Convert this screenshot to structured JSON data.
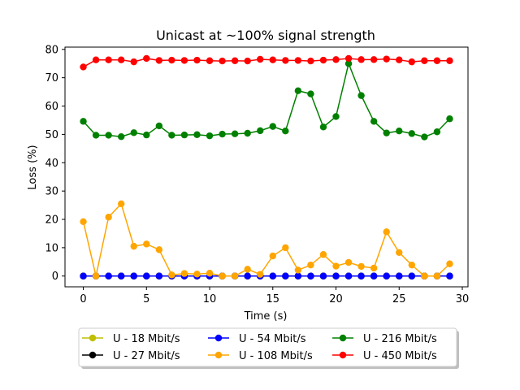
{
  "chart_data": {
    "type": "line",
    "title": "Unicast  at ~100% signal strength",
    "xlabel": "Time (s)",
    "ylabel": "Loss (%)",
    "xlim": [
      -1.45,
      30.45
    ],
    "ylim": [
      -3.8,
      80.8
    ],
    "xticks": [
      0,
      5,
      10,
      15,
      20,
      25,
      30
    ],
    "yticks": [
      0,
      10,
      20,
      30,
      40,
      50,
      60,
      70,
      80
    ],
    "grid": false,
    "legend_position": "bottom-center, below plot, 3 columns",
    "x": [
      0,
      1,
      2,
      3,
      4,
      5,
      6,
      7,
      8,
      9,
      10,
      11,
      12,
      13,
      14,
      15,
      16,
      17,
      18,
      19,
      20,
      21,
      22,
      23,
      24,
      25,
      26,
      27,
      28,
      29
    ],
    "series": [
      {
        "name": "U - 18 Mbit/s",
        "color": "#bfbf00",
        "values": [
          0,
          0,
          0,
          0,
          0,
          0,
          0,
          0,
          0,
          0,
          0,
          0,
          0,
          0,
          0,
          0,
          0,
          0,
          0,
          0,
          0,
          0,
          0,
          0,
          0,
          0,
          0,
          0,
          0,
          0
        ]
      },
      {
        "name": "U - 27 Mbit/s",
        "color": "#000000",
        "values": [
          0,
          0,
          0,
          0,
          0,
          0,
          0,
          0,
          0,
          0,
          0,
          0,
          0,
          0,
          0,
          0,
          0,
          0,
          0,
          0,
          0,
          0,
          0,
          0,
          0,
          0,
          0,
          0,
          0,
          0
        ]
      },
      {
        "name": "U - 54 Mbit/s",
        "color": "#0000ff",
        "values": [
          0,
          0,
          0,
          0,
          0,
          0,
          0,
          0,
          0,
          0,
          0,
          0,
          0,
          0,
          0,
          0,
          0,
          0,
          0,
          0,
          0,
          0,
          0,
          0,
          0,
          0,
          0,
          0,
          0,
          0
        ]
      },
      {
        "name": "U - 108 Mbit/s",
        "color": "#ffa500",
        "values": [
          19.2,
          0,
          20.8,
          25.5,
          10.5,
          11.3,
          9.3,
          0.4,
          0.9,
          0.7,
          1.0,
          0,
          0,
          2.4,
          0.6,
          7.1,
          10.0,
          2.1,
          3.9,
          7.6,
          3.5,
          4.8,
          3.4,
          2.8,
          15.6,
          8.3,
          3.9,
          0,
          0,
          4.3
        ]
      },
      {
        "name": "U - 216 Mbit/s",
        "color": "#008000",
        "values": [
          54.6,
          49.7,
          49.7,
          49.2,
          50.6,
          49.8,
          53.0,
          49.7,
          49.8,
          49.9,
          49.5,
          50.1,
          50.2,
          50.4,
          51.3,
          52.8,
          51.2,
          65.4,
          64.3,
          52.6,
          56.3,
          75.0,
          63.7,
          54.6,
          50.5,
          51.2,
          50.3,
          49.1,
          50.9,
          55.5
        ]
      },
      {
        "name": "U - 450 Mbit/s",
        "color": "#ff0000",
        "values": [
          73.8,
          76.3,
          76.3,
          76.3,
          75.6,
          76.8,
          76.1,
          76.2,
          76.1,
          76.2,
          76.0,
          75.9,
          76.0,
          75.9,
          76.5,
          76.3,
          76.1,
          76.1,
          75.9,
          76.2,
          76.4,
          76.8,
          76.4,
          76.4,
          76.6,
          76.3,
          75.6,
          76.0,
          76.0,
          76.0
        ]
      }
    ]
  }
}
